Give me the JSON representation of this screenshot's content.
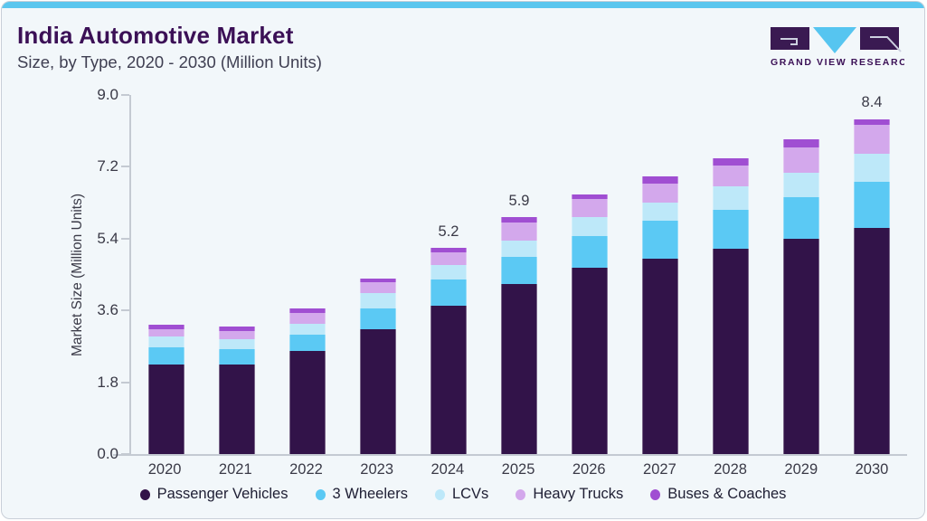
{
  "header": {
    "title": "India Automotive Market",
    "subtitle": "Size, by Type, 2020 - 2030 (Million Units)"
  },
  "logo": {
    "wordmark": "GRAND VIEW RESEARCH",
    "colors": {
      "block": "#3a1a52",
      "triangle": "#56c5f0",
      "glyph_line": "#cdd0e0",
      "text": "#3b1056"
    }
  },
  "chart_data": {
    "type": "bar",
    "stacked": true,
    "title": "India Automotive Market Size, by Type, 2020 - 2030 (Million Units)",
    "xlabel": "",
    "ylabel": "Market Size (Million Units)",
    "ylim": [
      0,
      9.0
    ],
    "ytick_labels": [
      "0.0",
      "1.8",
      "3.6",
      "5.4",
      "7.2",
      "9.0"
    ],
    "grid": false,
    "legend_position": "bottom",
    "categories": [
      "2020",
      "2021",
      "2022",
      "2023",
      "2024",
      "2025",
      "2026",
      "2027",
      "2028",
      "2029",
      "2030"
    ],
    "series": [
      {
        "name": "Passenger Vehicles",
        "color": "#321349",
        "values": [
          2.25,
          2.25,
          2.58,
          3.14,
          3.72,
          4.26,
          4.68,
          4.9,
          5.14,
          5.4,
          5.67
        ]
      },
      {
        "name": "3 Wheelers",
        "color": "#5bc9f4",
        "values": [
          0.43,
          0.37,
          0.42,
          0.52,
          0.65,
          0.69,
          0.79,
          0.94,
          0.99,
          1.05,
          1.16
        ]
      },
      {
        "name": "LCVs",
        "color": "#bde8f9",
        "values": [
          0.26,
          0.27,
          0.26,
          0.37,
          0.37,
          0.41,
          0.48,
          0.47,
          0.59,
          0.6,
          0.69
        ]
      },
      {
        "name": "Heavy Trucks",
        "color": "#d3a8ec",
        "values": [
          0.19,
          0.2,
          0.27,
          0.28,
          0.31,
          0.44,
          0.44,
          0.48,
          0.51,
          0.63,
          0.73
        ]
      },
      {
        "name": "Buses & Coaches",
        "color": "#a04ed2",
        "values": [
          0.12,
          0.11,
          0.11,
          0.1,
          0.12,
          0.13,
          0.11,
          0.17,
          0.19,
          0.2,
          0.15
        ]
      }
    ],
    "bar_total_labels": [
      "",
      "",
      "",
      "",
      "5.2",
      "5.9",
      "",
      "",
      "",
      "",
      "8.4"
    ]
  },
  "style_colors": {
    "card_background": "#f2f7fa",
    "top_strip": "#5bc6ee",
    "axis_line": "#c4cad2",
    "axis_text": "#3a3a47",
    "title_text": "#3b1056"
  }
}
